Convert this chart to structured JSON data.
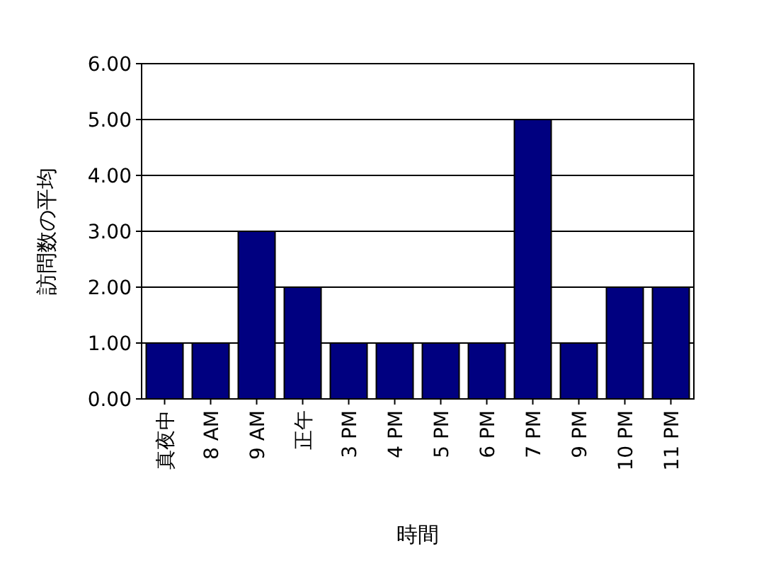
{
  "chart_data": {
    "type": "bar",
    "xlabel": "時間",
    "ylabel": "訪問数の平均",
    "categories": [
      "真夜中",
      "8 AM",
      "9 AM",
      "正午",
      "3 PM",
      "4 PM",
      "5 PM",
      "6 PM",
      "7 PM",
      "9 PM",
      "10 PM",
      "11 PM"
    ],
    "series": [
      {
        "color": "#000080",
        "values": [
          1,
          1,
          3,
          2,
          1,
          1,
          1,
          1,
          5,
          1,
          2,
          2
        ]
      }
    ],
    "ylim": [
      0,
      6
    ],
    "yticks": [
      {
        "value": 0,
        "label": "0.00"
      },
      {
        "value": 1,
        "label": "1.00"
      },
      {
        "value": 2,
        "label": "2.00"
      },
      {
        "value": 3,
        "label": "3.00"
      },
      {
        "value": 4,
        "label": "4.00"
      },
      {
        "value": 5,
        "label": "5.00"
      },
      {
        "value": 6,
        "label": "6.00"
      }
    ],
    "grid": "y"
  }
}
